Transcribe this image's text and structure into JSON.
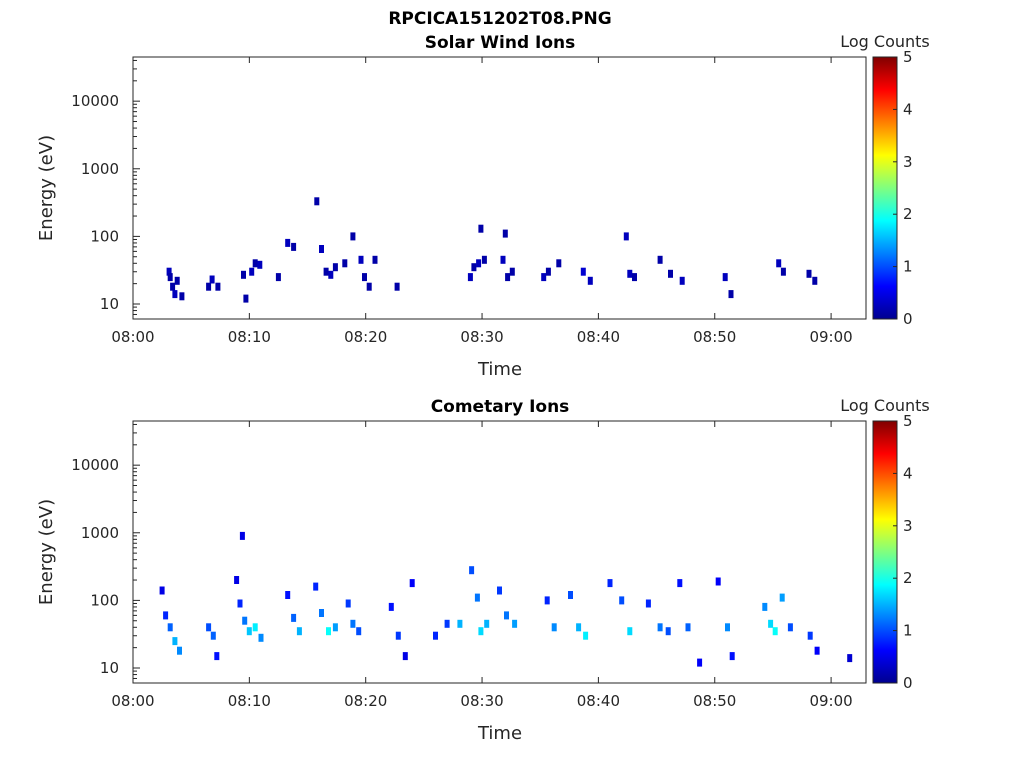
{
  "figure_title": "RPCICA151202T08.PNG",
  "chart_data": [
    {
      "type": "heatmap",
      "title": "Solar Wind Ions",
      "xlabel": "Time",
      "ylabel": "Energy (eV)",
      "x_ticks": [
        "08:00",
        "08:10",
        "08:20",
        "08:30",
        "08:40",
        "08:50",
        "09:00"
      ],
      "x_range_minutes": [
        0,
        63
      ],
      "y_scale": "log",
      "y_range": [
        6,
        45000
      ],
      "y_ticks": [
        "10",
        "100",
        "1000",
        "10000"
      ],
      "colorbar": {
        "label": "Log Counts",
        "ticks": [
          "0",
          "1",
          "2",
          "3",
          "4",
          "5"
        ],
        "range": [
          0,
          5
        ],
        "colormap": "jet"
      },
      "grid": false,
      "points": [
        [
          3.1,
          30,
          0.3
        ],
        [
          3.2,
          25,
          0.2
        ],
        [
          3.4,
          18,
          0.2
        ],
        [
          3.6,
          14,
          0.3
        ],
        [
          3.8,
          22,
          0.2
        ],
        [
          4.2,
          13,
          0.2
        ],
        [
          6.5,
          18,
          0.2
        ],
        [
          6.8,
          23,
          0.3
        ],
        [
          7.3,
          18,
          0.2
        ],
        [
          9.5,
          27,
          0.2
        ],
        [
          10.2,
          30,
          0.3
        ],
        [
          10.5,
          40,
          0.2
        ],
        [
          10.9,
          38,
          0.3
        ],
        [
          9.7,
          12,
          0.2
        ],
        [
          12.5,
          25,
          0.2
        ],
        [
          13.3,
          80,
          0.3
        ],
        [
          13.8,
          70,
          0.2
        ],
        [
          15.8,
          330,
          0.2
        ],
        [
          16.2,
          65,
          0.3
        ],
        [
          16.6,
          30,
          0.2
        ],
        [
          17.0,
          27,
          0.3
        ],
        [
          17.4,
          35,
          0.2
        ],
        [
          18.2,
          40,
          0.2
        ],
        [
          18.9,
          100,
          0.2
        ],
        [
          19.6,
          45,
          0.3
        ],
        [
          19.9,
          25,
          0.2
        ],
        [
          20.3,
          18,
          0.2
        ],
        [
          20.8,
          45,
          0.2
        ],
        [
          22.7,
          18,
          0.2
        ],
        [
          29.0,
          25,
          0.3
        ],
        [
          29.3,
          35,
          0.2
        ],
        [
          29.7,
          40,
          0.3
        ],
        [
          29.9,
          130,
          0.2
        ],
        [
          30.2,
          45,
          0.2
        ],
        [
          31.8,
          45,
          0.3
        ],
        [
          32.2,
          25,
          0.2
        ],
        [
          32.6,
          30,
          0.2
        ],
        [
          32.0,
          110,
          0.2
        ],
        [
          35.3,
          25,
          0.3
        ],
        [
          35.7,
          30,
          0.2
        ],
        [
          36.6,
          40,
          0.2
        ],
        [
          38.7,
          30,
          0.4
        ],
        [
          39.3,
          22,
          0.3
        ],
        [
          42.4,
          100,
          0.3
        ],
        [
          42.7,
          28,
          0.3
        ],
        [
          43.1,
          25,
          0.2
        ],
        [
          45.3,
          45,
          0.2
        ],
        [
          46.2,
          28,
          0.2
        ],
        [
          47.2,
          22,
          0.3
        ],
        [
          50.9,
          25,
          0.3
        ],
        [
          51.4,
          14,
          0.2
        ],
        [
          55.5,
          40,
          0.3
        ],
        [
          55.9,
          30,
          0.2
        ],
        [
          58.1,
          28,
          0.2
        ],
        [
          58.6,
          22,
          0.2
        ]
      ]
    },
    {
      "type": "heatmap",
      "title": "Cometary Ions",
      "xlabel": "Time",
      "ylabel": "Energy (eV)",
      "x_ticks": [
        "08:00",
        "08:10",
        "08:20",
        "08:30",
        "08:40",
        "08:50",
        "09:00"
      ],
      "x_range_minutes": [
        0,
        63
      ],
      "y_scale": "log",
      "y_range": [
        6,
        45000
      ],
      "y_ticks": [
        "10",
        "100",
        "1000",
        "10000"
      ],
      "colorbar": {
        "label": "Log Counts",
        "ticks": [
          "0",
          "1",
          "2",
          "3",
          "4",
          "5"
        ],
        "range": [
          0,
          5
        ],
        "colormap": "jet"
      },
      "grid": false,
      "points": [
        [
          2.5,
          140,
          0.5
        ],
        [
          2.8,
          60,
          0.8
        ],
        [
          3.2,
          40,
          1.1
        ],
        [
          3.6,
          25,
          1.5
        ],
        [
          4.0,
          18,
          1.3
        ],
        [
          6.5,
          40,
          1.0
        ],
        [
          6.9,
          30,
          1.1
        ],
        [
          7.2,
          15,
          0.7
        ],
        [
          8.9,
          200,
          0.5
        ],
        [
          9.2,
          90,
          0.8
        ],
        [
          9.6,
          50,
          1.2
        ],
        [
          10.0,
          35,
          1.6
        ],
        [
          10.5,
          40,
          1.8
        ],
        [
          11.0,
          28,
          1.3
        ],
        [
          9.4,
          900,
          0.5
        ],
        [
          13.3,
          120,
          0.7
        ],
        [
          13.8,
          55,
          1.1
        ],
        [
          14.3,
          35,
          1.5
        ],
        [
          15.7,
          160,
          0.8
        ],
        [
          16.2,
          65,
          1.2
        ],
        [
          16.8,
          35,
          1.9
        ],
        [
          17.4,
          40,
          1.4
        ],
        [
          18.5,
          90,
          0.9
        ],
        [
          18.9,
          45,
          1.2
        ],
        [
          19.4,
          35,
          1.0
        ],
        [
          22.2,
          80,
          0.7
        ],
        [
          22.8,
          30,
          0.9
        ],
        [
          23.4,
          15,
          0.5
        ],
        [
          24.0,
          180,
          0.6
        ],
        [
          26.0,
          30,
          0.8
        ],
        [
          27.0,
          45,
          0.9
        ],
        [
          28.1,
          45,
          1.5
        ],
        [
          29.1,
          280,
          1.0
        ],
        [
          29.6,
          110,
          1.2
        ],
        [
          29.9,
          35,
          1.7
        ],
        [
          30.4,
          45,
          1.5
        ],
        [
          31.5,
          140,
          0.9
        ],
        [
          32.1,
          60,
          1.2
        ],
        [
          32.8,
          45,
          1.4
        ],
        [
          35.6,
          100,
          0.8
        ],
        [
          36.2,
          40,
          1.3
        ],
        [
          37.6,
          120,
          1.0
        ],
        [
          38.3,
          40,
          1.5
        ],
        [
          38.9,
          30,
          1.8
        ],
        [
          41.0,
          180,
          0.8
        ],
        [
          42.0,
          100,
          1.0
        ],
        [
          42.7,
          35,
          1.7
        ],
        [
          44.3,
          90,
          0.8
        ],
        [
          45.3,
          40,
          1.2
        ],
        [
          46.0,
          35,
          1.0
        ],
        [
          47.0,
          180,
          0.7
        ],
        [
          47.7,
          40,
          1.1
        ],
        [
          48.7,
          12,
          0.6
        ],
        [
          50.3,
          190,
          0.6
        ],
        [
          51.1,
          40,
          1.3
        ],
        [
          51.5,
          15,
          0.7
        ],
        [
          54.3,
          80,
          1.3
        ],
        [
          54.8,
          45,
          1.7
        ],
        [
          55.2,
          35,
          1.9
        ],
        [
          55.8,
          110,
          1.4
        ],
        [
          56.5,
          40,
          1.0
        ],
        [
          58.2,
          30,
          0.9
        ],
        [
          58.8,
          18,
          0.6
        ],
        [
          61.6,
          14,
          0.4
        ]
      ]
    }
  ]
}
